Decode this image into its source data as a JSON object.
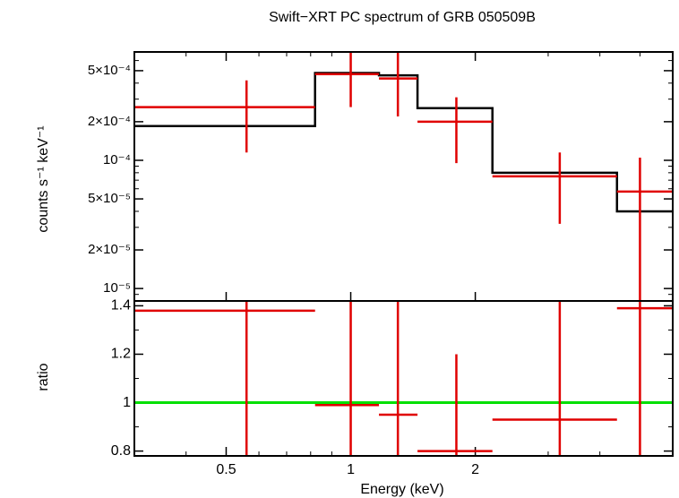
{
  "chart_data": [
    {
      "type": "step",
      "panel": "spectrum",
      "title": "Swift−XRT PC spectrum of GRB 050509B",
      "ylabel": "counts s⁻¹ keV⁻¹",
      "yscale": "log",
      "xscale": "log",
      "xlim": [
        0.3,
        6.0
      ],
      "ylim": [
        8e-06,
        0.0007
      ],
      "yticks": [
        {
          "value": 1e-05,
          "label": "10⁻⁵"
        },
        {
          "value": 2e-05,
          "label": "2×10⁻⁵"
        },
        {
          "value": 5e-05,
          "label": "5×10⁻⁵"
        },
        {
          "value": 0.0001,
          "label": "10⁻⁴"
        },
        {
          "value": 0.0002,
          "label": "2×10⁻⁴"
        },
        {
          "value": 0.0005,
          "label": "5×10⁻⁴"
        }
      ],
      "data_points": [
        {
          "x": 0.56,
          "xlo": 0.3,
          "xhi": 0.82,
          "y": 0.00026,
          "ylo": 0.000115,
          "yhi": 0.00042
        },
        {
          "x": 1.0,
          "xlo": 0.82,
          "xhi": 1.17,
          "y": 0.00047,
          "ylo": 0.00026,
          "yhi": 0.0007
        },
        {
          "x": 1.3,
          "xlo": 1.17,
          "xhi": 1.45,
          "y": 0.000435,
          "ylo": 0.00022,
          "yhi": 0.0007
        },
        {
          "x": 1.8,
          "xlo": 1.45,
          "xhi": 2.2,
          "y": 0.0002,
          "ylo": 9.5e-05,
          "yhi": 0.00031
        },
        {
          "x": 3.2,
          "xlo": 2.2,
          "xhi": 4.4,
          "y": 7.5e-05,
          "ylo": 3.2e-05,
          "yhi": 0.000115
        },
        {
          "x": 5.0,
          "xlo": 4.4,
          "xhi": 6.0,
          "y": 5.7e-05,
          "ylo": 8e-06,
          "yhi": 0.000105
        }
      ],
      "model_steps": [
        {
          "xlo": 0.3,
          "xhi": 0.82,
          "y": 0.000185
        },
        {
          "xlo": 0.82,
          "xhi": 1.17,
          "y": 0.00048
        },
        {
          "xlo": 1.17,
          "xhi": 1.45,
          "y": 0.00046
        },
        {
          "xlo": 1.45,
          "xhi": 2.2,
          "y": 0.000255
        },
        {
          "xlo": 2.2,
          "xhi": 4.4,
          "y": 8e-05
        },
        {
          "xlo": 4.4,
          "xhi": 6.0,
          "y": 4e-05
        }
      ],
      "colors": {
        "data": "#e00000",
        "model": "#000000"
      }
    },
    {
      "type": "scatter",
      "panel": "ratio",
      "ylabel": "ratio",
      "xlabel": "Energy (keV)",
      "xscale": "log",
      "xlim": [
        0.3,
        6.0
      ],
      "ylim": [
        0.78,
        1.42
      ],
      "xticks": [
        {
          "value": 0.5,
          "label": "0.5"
        },
        {
          "value": 1,
          "label": "1"
        },
        {
          "value": 2,
          "label": "2"
        }
      ],
      "yticks": [
        {
          "value": 0.8,
          "label": "0.8"
        },
        {
          "value": 1.0,
          "label": "1"
        },
        {
          "value": 1.2,
          "label": "1.2"
        },
        {
          "value": 1.4,
          "label": "1.4"
        }
      ],
      "reference_line": {
        "y": 1.0,
        "color": "#00e000"
      },
      "data_points": [
        {
          "x": 0.56,
          "xlo": 0.3,
          "xhi": 0.82,
          "y": 1.38,
          "ylo": 0.78,
          "yhi": 1.42
        },
        {
          "x": 1.0,
          "xlo": 0.82,
          "xhi": 1.17,
          "y": 0.99,
          "ylo": 0.78,
          "yhi": 1.42
        },
        {
          "x": 1.3,
          "xlo": 1.17,
          "xhi": 1.45,
          "y": 0.95,
          "ylo": 0.78,
          "yhi": 1.42
        },
        {
          "x": 1.8,
          "xlo": 1.45,
          "xhi": 2.2,
          "y": 0.8,
          "ylo": 0.78,
          "yhi": 1.2
        },
        {
          "x": 3.2,
          "xlo": 2.2,
          "xhi": 4.4,
          "y": 0.93,
          "ylo": 0.78,
          "yhi": 1.42
        },
        {
          "x": 5.0,
          "xlo": 4.4,
          "xhi": 6.0,
          "y": 1.39,
          "ylo": 0.78,
          "yhi": 1.42
        }
      ],
      "colors": {
        "data": "#e00000"
      }
    }
  ]
}
